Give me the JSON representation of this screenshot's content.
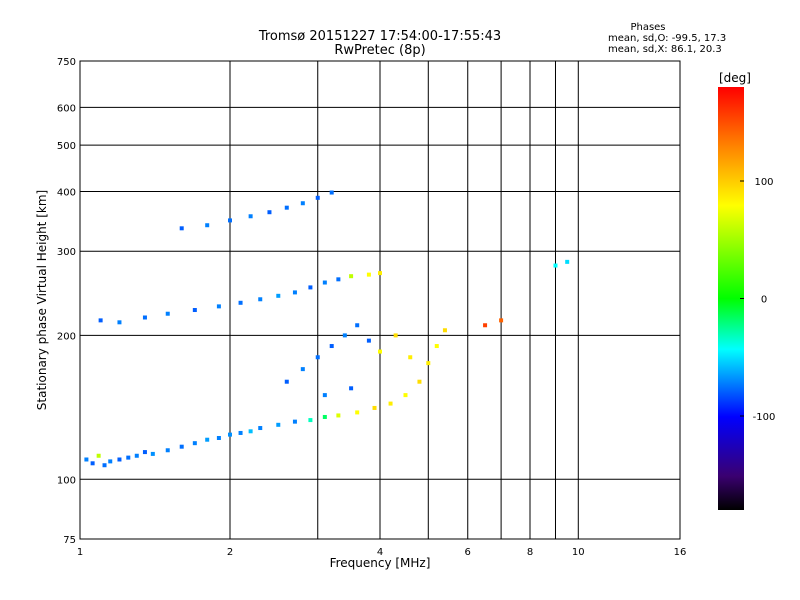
{
  "chart_data": {
    "type": "scatter",
    "title": "Tromsø 20151227 17:54:00-17:55:43",
    "subtitle": "RwPretec (8p)",
    "xlabel": "Frequency [MHz]",
    "ylabel": "Stationary phase Virtual Height [km]",
    "x_scale": "log2",
    "y_scale": "log",
    "xlim": [
      1,
      16
    ],
    "ylim": [
      75,
      750
    ],
    "x_ticks": [
      1,
      2,
      4,
      6,
      8,
      10,
      16
    ],
    "x_tick_labels": [
      "1",
      "2",
      "4",
      "6",
      "8",
      "10",
      "16"
    ],
    "x_grid": [
      1,
      2,
      3,
      4,
      5,
      6,
      7,
      8,
      9,
      10,
      16
    ],
    "y_ticks": [
      75,
      100,
      200,
      300,
      400,
      500,
      600,
      750
    ],
    "y_tick_labels": [
      "75",
      "100",
      "200",
      "300",
      "400",
      "500",
      "600",
      "750"
    ],
    "grid": true,
    "phases": {
      "heading": "Phases",
      "o_line": "mean, sd,O: -99.5, 17.3",
      "x_line": "mean, sd,X:  86.1, 20.3"
    },
    "colorbar": {
      "label": "[deg]",
      "range": [
        -180,
        180
      ],
      "ticks": [
        100,
        0,
        -100
      ],
      "tick_labels": [
        "100",
        "0",
        "-100"
      ]
    },
    "series": [
      {
        "value_kind": "bottom-side F trace (x: MHz, y: km, c: phase deg)",
        "points": [
          [
            1.03,
            110,
            -100
          ],
          [
            1.06,
            108,
            -110
          ],
          [
            1.09,
            112,
            80
          ],
          [
            1.12,
            107,
            -105
          ],
          [
            1.15,
            109,
            -100
          ],
          [
            1.2,
            110,
            -110
          ],
          [
            1.25,
            111,
            -105
          ],
          [
            1.3,
            112,
            -100
          ],
          [
            1.35,
            114,
            -110
          ],
          [
            1.4,
            113,
            -95
          ],
          [
            1.5,
            115,
            -100
          ],
          [
            1.6,
            117,
            -105
          ],
          [
            1.7,
            119,
            -100
          ],
          [
            1.8,
            121,
            -90
          ],
          [
            1.9,
            122,
            -100
          ],
          [
            2.0,
            124,
            -95
          ],
          [
            2.1,
            125,
            -100
          ],
          [
            2.2,
            126,
            -80
          ],
          [
            2.3,
            128,
            -100
          ],
          [
            2.5,
            130,
            -90
          ],
          [
            2.7,
            132,
            -100
          ],
          [
            2.9,
            133,
            -40
          ],
          [
            3.1,
            135,
            -10
          ],
          [
            3.3,
            136,
            90
          ],
          [
            3.6,
            138,
            100
          ],
          [
            3.9,
            141,
            110
          ],
          [
            4.2,
            144,
            105
          ],
          [
            4.5,
            150,
            100
          ],
          [
            4.8,
            160,
            110
          ],
          [
            5.0,
            175,
            105
          ],
          [
            5.2,
            190,
            100
          ],
          [
            5.4,
            205,
            110
          ]
        ]
      },
      {
        "value_kind": "F-layer lower trace",
        "points": [
          [
            1.1,
            215,
            -110
          ],
          [
            1.2,
            213,
            -100
          ],
          [
            1.35,
            218,
            -105
          ],
          [
            1.5,
            222,
            -100
          ],
          [
            1.7,
            226,
            -110
          ],
          [
            1.9,
            230,
            -100
          ],
          [
            2.1,
            234,
            -105
          ],
          [
            2.3,
            238,
            -100
          ],
          [
            2.5,
            242,
            -90
          ],
          [
            2.7,
            246,
            -100
          ],
          [
            2.9,
            252,
            -110
          ],
          [
            3.1,
            258,
            -100
          ],
          [
            3.3,
            262,
            -105
          ],
          [
            3.5,
            266,
            80
          ],
          [
            3.8,
            268,
            100
          ],
          [
            4.0,
            270,
            105
          ]
        ]
      },
      {
        "value_kind": "upper trace",
        "points": [
          [
            1.6,
            335,
            -110
          ],
          [
            1.8,
            340,
            -100
          ],
          [
            2.0,
            348,
            -105
          ],
          [
            2.2,
            355,
            -100
          ],
          [
            2.4,
            362,
            -110
          ],
          [
            2.6,
            370,
            -105
          ],
          [
            2.8,
            378,
            -100
          ],
          [
            3.0,
            388,
            -110
          ],
          [
            3.2,
            398,
            -105
          ]
        ]
      },
      {
        "value_kind": "scattered cluster",
        "points": [
          [
            2.6,
            160,
            -110
          ],
          [
            2.8,
            170,
            -100
          ],
          [
            3.0,
            180,
            -105
          ],
          [
            3.2,
            190,
            -110
          ],
          [
            3.4,
            200,
            -100
          ],
          [
            3.6,
            210,
            -105
          ],
          [
            3.8,
            195,
            -110
          ],
          [
            3.1,
            150,
            -100
          ],
          [
            3.5,
            155,
            -110
          ],
          [
            4.0,
            185,
            100
          ],
          [
            4.3,
            200,
            110
          ],
          [
            4.6,
            180,
            105
          ],
          [
            6.5,
            210,
            160
          ],
          [
            7.0,
            215,
            150
          ],
          [
            9.0,
            280,
            -60
          ],
          [
            9.5,
            285,
            -70
          ]
        ]
      }
    ]
  }
}
